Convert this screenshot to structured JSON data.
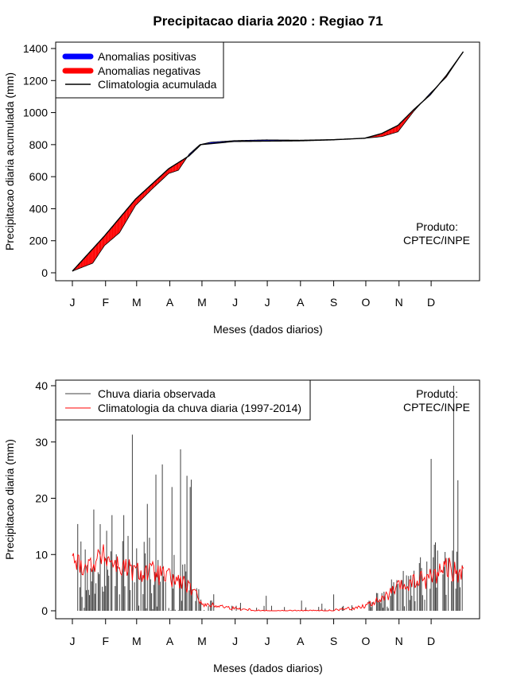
{
  "chart_data": [
    {
      "type": "area",
      "title": "Precipitacao diaria 2020 : Regiao 71",
      "xlabel": "Meses (dados diarios)",
      "ylabel": "Precipitacao diaria acumulada (mm)",
      "ylim": [
        0,
        1400
      ],
      "yticks": [
        0,
        200,
        400,
        600,
        800,
        1000,
        1200,
        1400
      ],
      "months": [
        "J",
        "F",
        "M",
        "A",
        "M",
        "J",
        "J",
        "A",
        "S",
        "O",
        "N",
        "D"
      ],
      "legend": {
        "position": "top-left",
        "items": [
          {
            "label": "Anomalias positivas",
            "color": "#0000ff"
          },
          {
            "label": "Anomalias negativas",
            "color": "#ff0000"
          },
          {
            "label": "Climatologia acumulada",
            "color": "#000000"
          }
        ]
      },
      "annotation": [
        "Produto:",
        "CPTEC/INPE"
      ],
      "climatology": {
        "x": [
          1,
          31,
          60,
          91,
          110,
          121,
          152,
          182,
          213,
          244,
          274,
          290,
          305,
          320,
          335,
          350,
          366
        ],
        "y": [
          10,
          230,
          460,
          650,
          730,
          800,
          820,
          822,
          824,
          830,
          840,
          870,
          920,
          1020,
          1110,
          1230,
          1380
        ]
      },
      "observed": {
        "x": [
          1,
          20,
          31,
          45,
          60,
          75,
          91,
          100,
          110,
          120,
          130,
          152,
          182,
          213,
          244,
          274,
          290,
          305,
          320,
          335,
          350,
          366
        ],
        "y": [
          10,
          60,
          170,
          250,
          420,
          520,
          620,
          640,
          740,
          800,
          815,
          825,
          830,
          828,
          832,
          840,
          850,
          880,
          1010,
          1120,
          1220,
          1380
        ]
      }
    },
    {
      "type": "bar",
      "xlabel": "Meses (dados diarios)",
      "ylabel": "Precipitacao diaria (mm)",
      "ylim": [
        0,
        40
      ],
      "yticks": [
        0,
        10,
        20,
        30,
        40
      ],
      "months": [
        "J",
        "F",
        "M",
        "A",
        "M",
        "J",
        "J",
        "A",
        "S",
        "O",
        "N",
        "D"
      ],
      "legend": {
        "position": "top-left",
        "items": [
          {
            "label": "Chuva diaria observada",
            "color": "#404040"
          },
          {
            "label": "Climatologia da chuva diaria (1997-2014)",
            "color": "#ff0000"
          }
        ]
      },
      "annotation": [
        "Produto:",
        "CPTEC/INPE"
      ],
      "daily_peaks": {
        "day": [
          21,
          38,
          49,
          57,
          71,
          79,
          85,
          94,
          102,
          108,
          111,
          112,
          336,
          357,
          361
        ],
        "value": [
          18,
          17,
          17,
          31.3,
          19,
          24.2,
          26,
          22,
          28.7,
          24,
          22,
          23.3,
          27,
          40,
          23.2
        ]
      },
      "climatology_knots": {
        "day": [
          1,
          15,
          30,
          45,
          60,
          75,
          90,
          105,
          115,
          125,
          135,
          150,
          180,
          210,
          240,
          265,
          275,
          290,
          305,
          320,
          335,
          350,
          366
        ],
        "value": [
          9,
          8,
          10,
          8,
          7,
          7,
          6,
          5,
          3,
          1,
          1,
          0.5,
          0,
          0,
          0,
          0.5,
          1,
          2,
          4,
          5,
          6,
          8,
          6
        ]
      }
    }
  ]
}
